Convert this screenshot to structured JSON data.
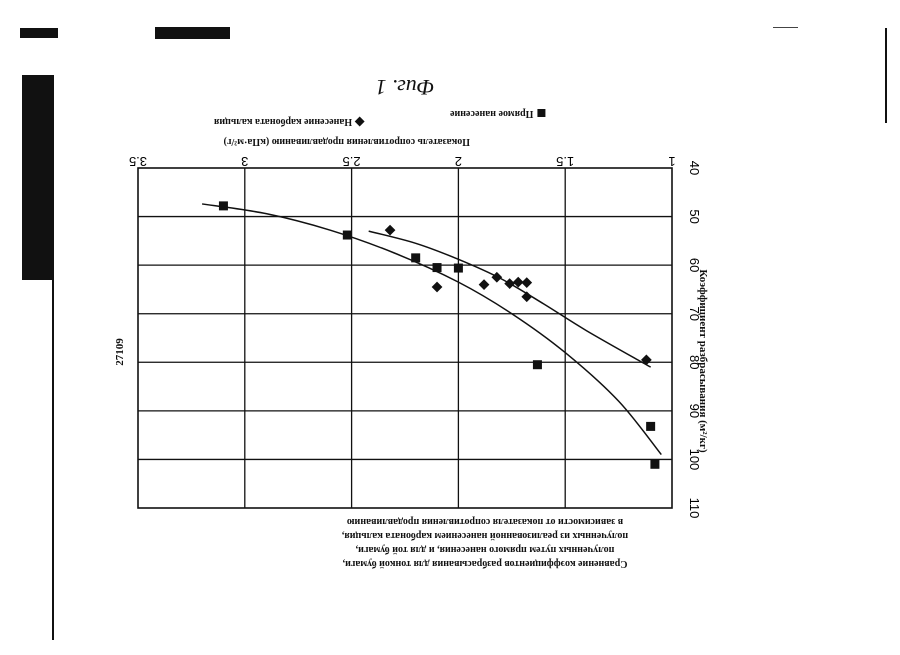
{
  "page": {
    "doc_number": "27109",
    "figure_label": "Фиг. 1"
  },
  "legend": {
    "items": [
      {
        "label": "Прямое нанесение",
        "marker": "square-icon"
      },
      {
        "label": "Нанесение карбоната кальция",
        "marker": "diamond-icon"
      }
    ]
  },
  "caption": {
    "lines": [
      "Сравнение коэффициентов разбрасывания для тонкой бумаги,",
      "полученных путем прямого нанесения, и для той бумаги,",
      "полученных из реализованной нанесением карбоната кальция,",
      "в зависимости от показателя сопротивления продавливанию"
    ]
  },
  "chart_data": {
    "type": "scatter",
    "orientation": "page rotated 180°",
    "xlabel": "Показатель сопротивления продавливанию (кПа·м²/г)",
    "ylabel": "Коэффициент разбрасывания (м²/кг)",
    "xlim": [
      1,
      3.5
    ],
    "ylim": [
      40,
      110
    ],
    "x_ticks": [
      "1",
      "1.5",
      "2",
      "2.5",
      "3",
      "3.5"
    ],
    "y_ticks": [
      "40",
      "50",
      "60",
      "70",
      "80",
      "90",
      "100",
      "110"
    ],
    "grid": true,
    "legend_position": "top",
    "series": [
      {
        "name": "Прямое нанесение",
        "marker": "square",
        "points": [
          {
            "x": 3.1,
            "y": 47.8
          },
          {
            "x": 2.52,
            "y": 53.8
          },
          {
            "x": 2.2,
            "y": 58.5
          },
          {
            "x": 2.1,
            "y": 60.5
          },
          {
            "x": 2.0,
            "y": 60.6
          },
          {
            "x": 1.63,
            "y": 80.5
          },
          {
            "x": 1.1,
            "y": 93.2
          },
          {
            "x": 1.08,
            "y": 101.0
          }
        ],
        "trend": [
          {
            "x": 3.2,
            "y": 47.4
          },
          {
            "x": 2.9,
            "y": 49.4
          },
          {
            "x": 2.6,
            "y": 52.8
          },
          {
            "x": 2.3,
            "y": 57.5
          },
          {
            "x": 2.0,
            "y": 63.5
          },
          {
            "x": 1.75,
            "y": 70.0
          },
          {
            "x": 1.5,
            "y": 78.0
          },
          {
            "x": 1.25,
            "y": 88.0
          },
          {
            "x": 1.05,
            "y": 99.0
          }
        ]
      },
      {
        "name": "Нанесение карбоната кальция",
        "marker": "diamond",
        "points": [
          {
            "x": 2.32,
            "y": 52.8
          },
          {
            "x": 2.1,
            "y": 64.5
          },
          {
            "x": 1.88,
            "y": 64.0
          },
          {
            "x": 1.82,
            "y": 62.5
          },
          {
            "x": 1.76,
            "y": 63.8
          },
          {
            "x": 1.72,
            "y": 63.5
          },
          {
            "x": 1.68,
            "y": 63.6
          },
          {
            "x": 1.68,
            "y": 66.5
          },
          {
            "x": 1.12,
            "y": 79.5
          }
        ],
        "trend": [
          {
            "x": 2.42,
            "y": 53.0
          },
          {
            "x": 2.2,
            "y": 55.5
          },
          {
            "x": 2.0,
            "y": 58.8
          },
          {
            "x": 1.8,
            "y": 62.8
          },
          {
            "x": 1.6,
            "y": 68.0
          },
          {
            "x": 1.4,
            "y": 73.5
          },
          {
            "x": 1.1,
            "y": 81.0
          }
        ]
      }
    ]
  }
}
